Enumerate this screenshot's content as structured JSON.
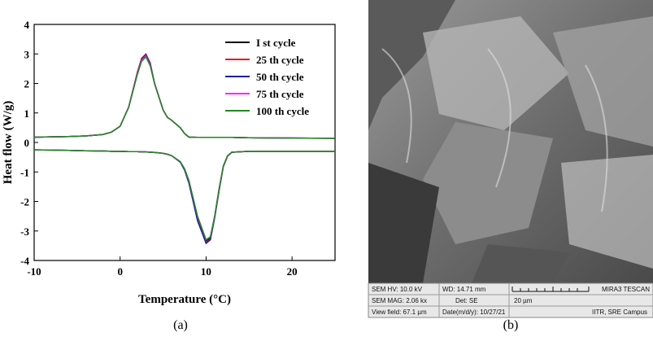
{
  "chart_data": {
    "type": "line",
    "x_label": "Temperature (°C)",
    "y_label": "Heat flow (W/g)",
    "xlim": [
      -10,
      25
    ],
    "ylim": [
      -4,
      4
    ],
    "xticks": [
      -10,
      0,
      10,
      20
    ],
    "yticks": [
      -4,
      -3,
      -2,
      -1,
      0,
      1,
      2,
      3,
      4
    ],
    "legend": "top-right",
    "x": [
      -10,
      -8,
      -6,
      -4,
      -2,
      -1,
      0,
      1,
      2,
      2.5,
      3,
      3.5,
      4,
      5,
      5.5,
      6,
      7,
      7.5,
      8,
      9,
      10,
      10.5,
      11,
      11.5,
      12,
      12.5,
      13,
      15,
      20,
      25
    ],
    "series": [
      {
        "name": "I st cycle",
        "color": "#000000",
        "values": [
          0.18,
          0.19,
          0.2,
          0.22,
          0.27,
          0.35,
          0.55,
          1.2,
          2.35,
          2.8,
          2.95,
          2.65,
          2.0,
          1.1,
          0.85,
          0.75,
          0.5,
          0.3,
          0.18,
          0.17,
          0.17,
          0.17,
          0.17,
          0.17,
          0.17,
          0.17,
          0.17,
          0.16,
          0.15,
          0.14
        ],
        "cooling_values": [
          -0.25,
          -0.26,
          -0.27,
          -0.28,
          -0.29,
          -0.3,
          -0.3,
          -0.31,
          -0.31,
          -0.32,
          -0.32,
          -0.33,
          -0.34,
          -0.37,
          -0.4,
          -0.45,
          -0.65,
          -0.9,
          -1.3,
          -2.55,
          -3.35,
          -3.25,
          -2.5,
          -1.6,
          -0.8,
          -0.45,
          -0.33,
          -0.3,
          -0.3,
          -0.3
        ]
      },
      {
        "name": "25 th cycle",
        "color": "#e8141e",
        "values": [
          0.18,
          0.19,
          0.2,
          0.22,
          0.27,
          0.35,
          0.55,
          1.2,
          2.38,
          2.85,
          3.0,
          2.7,
          2.02,
          1.1,
          0.85,
          0.75,
          0.5,
          0.3,
          0.18,
          0.17,
          0.17,
          0.17,
          0.17,
          0.17,
          0.17,
          0.17,
          0.17,
          0.16,
          0.15,
          0.14
        ],
        "cooling_values": [
          -0.25,
          -0.26,
          -0.27,
          -0.28,
          -0.29,
          -0.3,
          -0.3,
          -0.31,
          -0.31,
          -0.32,
          -0.32,
          -0.33,
          -0.34,
          -0.37,
          -0.4,
          -0.45,
          -0.66,
          -0.92,
          -1.35,
          -2.6,
          -3.38,
          -3.28,
          -2.55,
          -1.65,
          -0.82,
          -0.46,
          -0.33,
          -0.3,
          -0.3,
          -0.3
        ]
      },
      {
        "name": "50 th cycle",
        "color": "#1c1ca8",
        "values": [
          0.18,
          0.19,
          0.2,
          0.22,
          0.27,
          0.35,
          0.55,
          1.2,
          2.36,
          2.82,
          2.97,
          2.67,
          2.01,
          1.1,
          0.85,
          0.75,
          0.5,
          0.3,
          0.18,
          0.17,
          0.17,
          0.17,
          0.17,
          0.17,
          0.17,
          0.17,
          0.17,
          0.16,
          0.15,
          0.14
        ],
        "cooling_values": [
          -0.25,
          -0.26,
          -0.27,
          -0.28,
          -0.29,
          -0.3,
          -0.3,
          -0.31,
          -0.31,
          -0.32,
          -0.32,
          -0.33,
          -0.34,
          -0.37,
          -0.4,
          -0.45,
          -0.67,
          -0.94,
          -1.38,
          -2.65,
          -3.42,
          -3.3,
          -2.55,
          -1.65,
          -0.82,
          -0.46,
          -0.33,
          -0.3,
          -0.3,
          -0.3
        ]
      },
      {
        "name": "75 th cycle",
        "color": "#ff22ff",
        "values": [
          0.18,
          0.19,
          0.2,
          0.22,
          0.27,
          0.35,
          0.55,
          1.2,
          2.33,
          2.78,
          2.93,
          2.63,
          2.0,
          1.1,
          0.85,
          0.75,
          0.5,
          0.3,
          0.18,
          0.17,
          0.17,
          0.17,
          0.17,
          0.17,
          0.17,
          0.17,
          0.17,
          0.16,
          0.15,
          0.14
        ],
        "cooling_values": [
          -0.25,
          -0.26,
          -0.27,
          -0.28,
          -0.29,
          -0.3,
          -0.3,
          -0.31,
          -0.31,
          -0.32,
          -0.32,
          -0.33,
          -0.34,
          -0.37,
          -0.4,
          -0.45,
          -0.65,
          -0.9,
          -1.3,
          -2.5,
          -3.3,
          -3.2,
          -2.5,
          -1.6,
          -0.8,
          -0.45,
          -0.33,
          -0.3,
          -0.3,
          -0.3
        ]
      },
      {
        "name": "100 th cycle",
        "color": "#1f8a1f",
        "values": [
          0.18,
          0.19,
          0.2,
          0.22,
          0.27,
          0.35,
          0.55,
          1.2,
          2.3,
          2.75,
          2.9,
          2.6,
          2.0,
          1.1,
          0.85,
          0.75,
          0.5,
          0.3,
          0.18,
          0.17,
          0.17,
          0.17,
          0.17,
          0.17,
          0.17,
          0.17,
          0.17,
          0.16,
          0.15,
          0.14
        ],
        "cooling_values": [
          -0.25,
          -0.26,
          -0.27,
          -0.28,
          -0.29,
          -0.3,
          -0.3,
          -0.31,
          -0.31,
          -0.32,
          -0.32,
          -0.33,
          -0.34,
          -0.37,
          -0.4,
          -0.45,
          -0.65,
          -0.9,
          -1.3,
          -2.5,
          -3.3,
          -3.2,
          -2.5,
          -1.6,
          -0.8,
          -0.45,
          -0.33,
          -0.3,
          -0.3,
          -0.3
        ]
      }
    ]
  },
  "captions": [
    "(a)",
    "(b)"
  ],
  "sem_info": {
    "hv": "SEM HV: 10.0 kV",
    "wd": "WD: 14.71 mm",
    "brand": "MIRA3 TESCAN",
    "mag": "SEM MAG: 2.06 kx",
    "det": "Det: SE",
    "scale": "20 µm",
    "view": "View field: 67.1 µm",
    "date": "Date(m/d/y): 10/27/21",
    "site": "IITR, SRE Campus"
  }
}
